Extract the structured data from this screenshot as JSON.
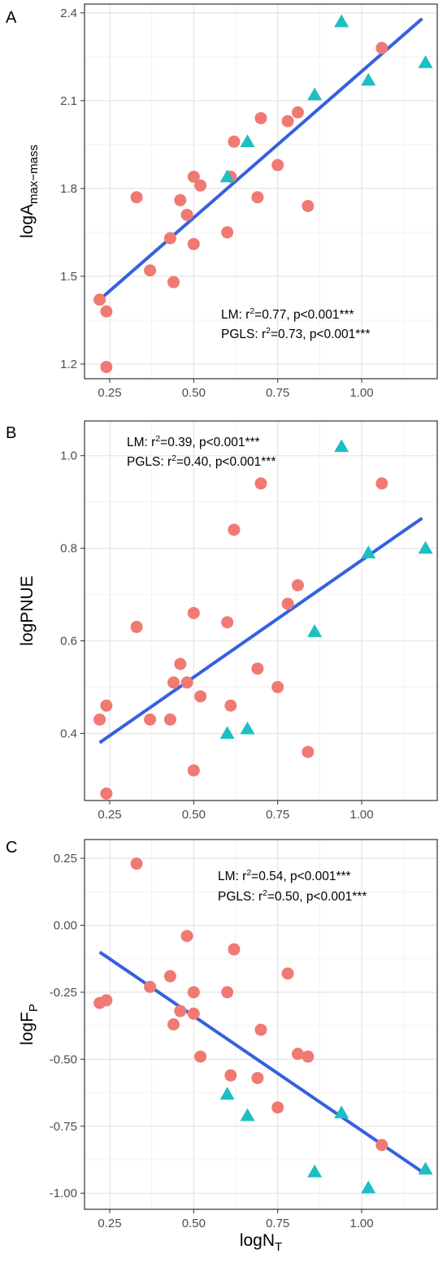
{
  "colors": {
    "circle": "#F07A73",
    "triangle": "#1CBFC3",
    "fit_line": "#3461E0",
    "grid": "#E6E6E6",
    "panel_border": "#333333",
    "tick_text": "#4D4D4D"
  },
  "shared_x": {
    "label_main": "logN",
    "label_sub": "T",
    "ticks": [
      0.25,
      0.5,
      0.75,
      1.0
    ],
    "tick_labels": [
      "0.25",
      "0.50",
      "0.75",
      "1.00"
    ],
    "xlim": [
      0.175,
      1.225
    ]
  },
  "chart_data": [
    {
      "type": "scatter",
      "panel": "A",
      "ylabel_main": "logA",
      "ylabel_sub": "max−mass",
      "ylim": [
        1.15,
        2.43
      ],
      "yticks": [
        1.2,
        1.5,
        1.8,
        2.1,
        2.4
      ],
      "ytick_labels": [
        "1.2",
        "1.5",
        "1.8",
        "2.1",
        "2.4"
      ],
      "annotations": [
        {
          "model": "LM",
          "r2": "0.77",
          "p": "p<0.001***"
        },
        {
          "model": "PGLS",
          "r2": "0.73",
          "p": "p<0.001***"
        }
      ],
      "fit": {
        "x": [
          0.22,
          1.18
        ],
        "y": [
          1.42,
          2.38
        ]
      },
      "series": [
        {
          "marker": "circle",
          "points": [
            [
              0.22,
              1.42
            ],
            [
              0.24,
              1.38
            ],
            [
              0.24,
              1.19
            ],
            [
              0.33,
              1.77
            ],
            [
              0.37,
              1.52
            ],
            [
              0.43,
              1.63
            ],
            [
              0.44,
              1.48
            ],
            [
              0.46,
              1.76
            ],
            [
              0.48,
              1.71
            ],
            [
              0.5,
              1.84
            ],
            [
              0.5,
              1.61
            ],
            [
              0.52,
              1.81
            ],
            [
              0.6,
              1.65
            ],
            [
              0.61,
              1.84
            ],
            [
              0.62,
              1.96
            ],
            [
              0.69,
              1.77
            ],
            [
              0.7,
              2.04
            ],
            [
              0.75,
              1.88
            ],
            [
              0.78,
              2.03
            ],
            [
              0.81,
              2.06
            ],
            [
              0.84,
              1.74
            ],
            [
              1.06,
              2.28
            ]
          ]
        },
        {
          "marker": "triangle",
          "points": [
            [
              0.6,
              1.84
            ],
            [
              0.66,
              1.96
            ],
            [
              0.86,
              2.12
            ],
            [
              0.94,
              2.37
            ],
            [
              1.02,
              2.17
            ],
            [
              1.19,
              2.23
            ]
          ]
        }
      ]
    },
    {
      "type": "scatter",
      "panel": "B",
      "ylabel_main": "logPNUE",
      "ylabel_sub": "",
      "ylim": [
        0.255,
        1.075
      ],
      "yticks": [
        0.4,
        0.6,
        0.8,
        1.0
      ],
      "ytick_labels": [
        "0.4",
        "0.6",
        "0.8",
        "1.0"
      ],
      "annotations": [
        {
          "model": "LM",
          "r2": "0.39",
          "p": "p<0.001***"
        },
        {
          "model": "PGLS",
          "r2": "0.40",
          "p": "p<0.001***"
        }
      ],
      "fit": {
        "x": [
          0.22,
          1.18
        ],
        "y": [
          0.38,
          0.865
        ]
      },
      "series": [
        {
          "marker": "circle",
          "points": [
            [
              0.22,
              0.43
            ],
            [
              0.24,
              0.46
            ],
            [
              0.24,
              0.27
            ],
            [
              0.33,
              0.63
            ],
            [
              0.37,
              0.43
            ],
            [
              0.43,
              0.43
            ],
            [
              0.44,
              0.51
            ],
            [
              0.46,
              0.55
            ],
            [
              0.48,
              0.51
            ],
            [
              0.5,
              0.66
            ],
            [
              0.5,
              0.32
            ],
            [
              0.52,
              0.48
            ],
            [
              0.6,
              0.64
            ],
            [
              0.61,
              0.46
            ],
            [
              0.62,
              0.84
            ],
            [
              0.69,
              0.54
            ],
            [
              0.7,
              0.94
            ],
            [
              0.75,
              0.5
            ],
            [
              0.78,
              0.68
            ],
            [
              0.81,
              0.72
            ],
            [
              0.84,
              0.36
            ],
            [
              1.06,
              0.94
            ]
          ]
        },
        {
          "marker": "triangle",
          "points": [
            [
              0.6,
              0.4
            ],
            [
              0.66,
              0.41
            ],
            [
              0.86,
              0.62
            ],
            [
              0.94,
              1.02
            ],
            [
              1.02,
              0.79
            ],
            [
              1.19,
              0.8
            ]
          ]
        }
      ]
    },
    {
      "type": "scatter",
      "panel": "C",
      "ylabel_main": "logF",
      "ylabel_sub": "P",
      "ylim": [
        -1.06,
        0.32
      ],
      "yticks": [
        -1.0,
        -0.75,
        -0.5,
        -0.25,
        0.0,
        0.25
      ],
      "ytick_labels": [
        "-1.00",
        "-0.75",
        "-0.50",
        "-0.25",
        "0.00",
        "0.25"
      ],
      "annotations": [
        {
          "model": "LM",
          "r2": "0.54",
          "p": "p<0.001***"
        },
        {
          "model": "PGLS",
          "r2": "0.50",
          "p": "p<0.001***"
        }
      ],
      "fit": {
        "x": [
          0.22,
          1.18
        ],
        "y": [
          -0.1,
          -0.92
        ]
      },
      "series": [
        {
          "marker": "circle",
          "points": [
            [
              0.22,
              -0.29
            ],
            [
              0.24,
              -0.28
            ],
            [
              0.33,
              0.23
            ],
            [
              0.37,
              -0.23
            ],
            [
              0.43,
              -0.19
            ],
            [
              0.44,
              -0.37
            ],
            [
              0.46,
              -0.32
            ],
            [
              0.48,
              -0.04
            ],
            [
              0.5,
              -0.25
            ],
            [
              0.5,
              -0.33
            ],
            [
              0.52,
              -0.49
            ],
            [
              0.6,
              -0.25
            ],
            [
              0.61,
              -0.56
            ],
            [
              0.62,
              -0.09
            ],
            [
              0.69,
              -0.57
            ],
            [
              0.7,
              -0.39
            ],
            [
              0.75,
              -0.68
            ],
            [
              0.78,
              -0.18
            ],
            [
              0.81,
              -0.48
            ],
            [
              0.84,
              -0.49
            ],
            [
              1.06,
              -0.82
            ]
          ]
        },
        {
          "marker": "triangle",
          "points": [
            [
              0.6,
              -0.63
            ],
            [
              0.66,
              -0.71
            ],
            [
              0.86,
              -0.92
            ],
            [
              0.94,
              -0.7
            ],
            [
              1.02,
              -0.98
            ],
            [
              1.19,
              -0.91
            ]
          ]
        }
      ]
    }
  ]
}
